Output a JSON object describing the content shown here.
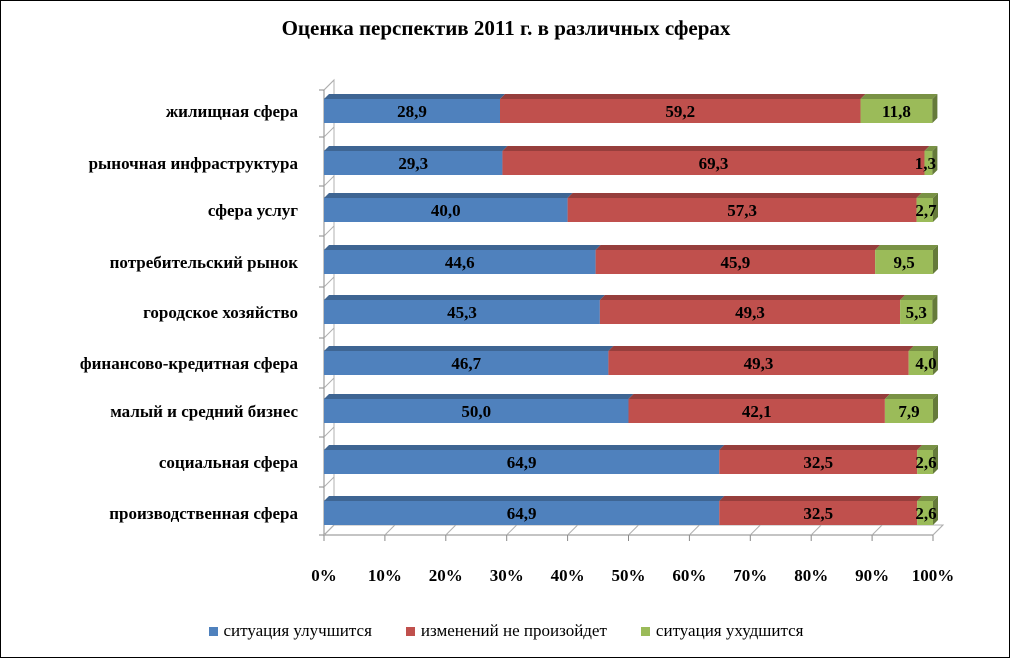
{
  "chart_data": {
    "type": "bar",
    "orientation": "horizontal",
    "stacked": "percent",
    "style": "3d",
    "title": "Оценка перспектив  2011 г. в различных сферах",
    "categories": [
      "жилищная сфера",
      "рыночная инфраструктура",
      "сфера услуг",
      "потребительский рынок",
      "городское хозяйство",
      "финансово-кредитная сфера",
      "малый и средний бизнес",
      "социальная сфера",
      "производственная сфера"
    ],
    "series": [
      {
        "name": "ситуация улучшится",
        "color": "#4F81BD",
        "values": [
          28.9,
          29.3,
          40.0,
          44.6,
          45.3,
          46.7,
          50.0,
          64.9,
          64.9
        ],
        "labels": [
          "28,9",
          "29,3",
          "40,0",
          "44,6",
          "45,3",
          "46,7",
          "50,0",
          "64,9",
          "64,9"
        ]
      },
      {
        "name": "изменений не произойдет",
        "color": "#C0504D",
        "values": [
          59.2,
          69.3,
          57.3,
          45.9,
          49.3,
          49.3,
          42.1,
          32.5,
          32.5
        ],
        "labels": [
          "59,2",
          "69,3",
          "57,3",
          "45,9",
          "49,3",
          "49,3",
          "42,1",
          "32,5",
          "32,5"
        ]
      },
      {
        "name": "ситуация ухудшится",
        "color": "#9BBB59",
        "values": [
          11.8,
          1.3,
          2.7,
          9.5,
          5.3,
          4.0,
          7.9,
          2.6,
          2.6
        ],
        "labels": [
          "11,8",
          "1,3",
          "2,7",
          "9,5",
          "5,3",
          "4,0",
          "7,9",
          "2,6",
          "2,6"
        ]
      }
    ],
    "x_ticks": [
      "0%",
      "10%",
      "20%",
      "30%",
      "40%",
      "50%",
      "60%",
      "70%",
      "80%",
      "90%",
      "100%"
    ],
    "xlim": [
      0,
      100
    ],
    "grid": false,
    "legend": "bottom"
  }
}
